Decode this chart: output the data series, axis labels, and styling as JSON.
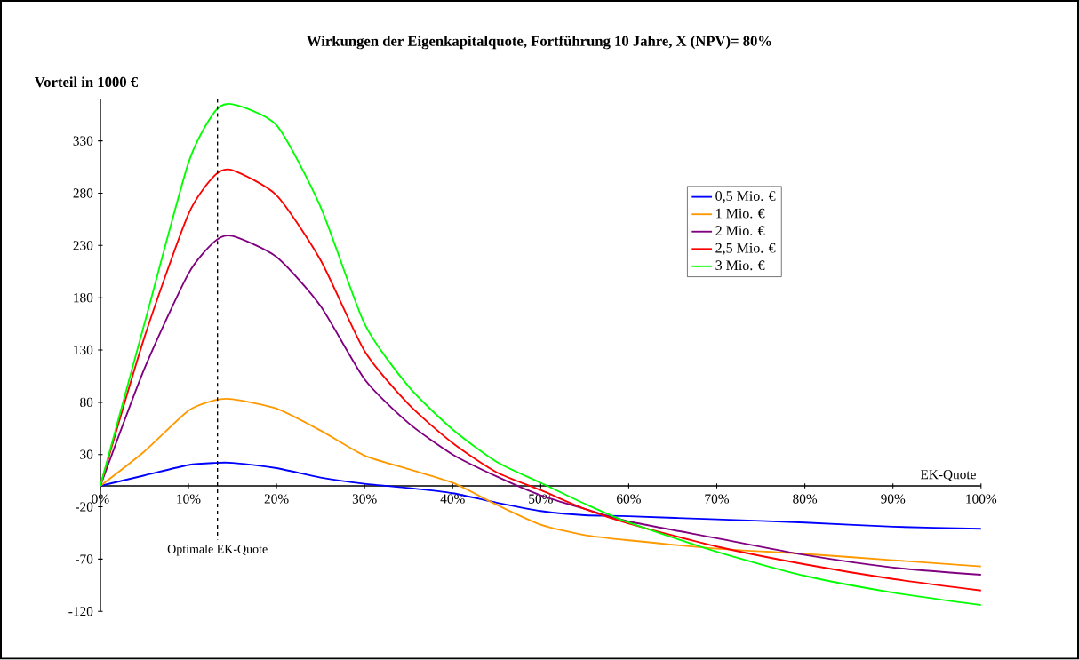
{
  "chart_data": {
    "type": "line",
    "title": "Wirkungen der Eigenkapitalquote, Fortführung 10 Jahre, X (NPV)= 80%",
    "xlabel": "EK-Quote",
    "ylabel": "Vorteil in 1000 €",
    "x": [
      0,
      5,
      10,
      13,
      15,
      20,
      25,
      30,
      35,
      40,
      45,
      50,
      55,
      60,
      70,
      80,
      90,
      100
    ],
    "series": [
      {
        "name": "0,5 Mio. €",
        "color": "#0000ff",
        "values": [
          0,
          10,
          20,
          22,
          22,
          17,
          8,
          2,
          -2,
          -7,
          -16,
          -24,
          -28,
          -29,
          -32,
          -35,
          -39,
          -41
        ]
      },
      {
        "name": "1 Mio. €",
        "color": "#ff9900",
        "values": [
          0,
          33,
          72,
          82,
          83,
          74,
          53,
          29,
          16,
          3,
          -18,
          -37,
          -47,
          -52,
          -60,
          -65,
          -71,
          -77
        ]
      },
      {
        "name": "2 Mio. €",
        "color": "#800080",
        "values": [
          0,
          112,
          203,
          234,
          239,
          219,
          172,
          102,
          60,
          30,
          9,
          -9,
          -22,
          -34,
          -50,
          -66,
          -78,
          -85
        ]
      },
      {
        "name": "2,5 Mio. €",
        "color": "#ff0000",
        "values": [
          0,
          142,
          260,
          297,
          302,
          278,
          216,
          129,
          78,
          41,
          13,
          -4,
          -22,
          -36,
          -58,
          -75,
          -89,
          -100
        ]
      },
      {
        "name": "3 Mio. €",
        "color": "#00ff00",
        "values": [
          0,
          155,
          309,
          358,
          365,
          345,
          267,
          155,
          95,
          54,
          23,
          3,
          -17,
          -35,
          -63,
          -86,
          -102,
          -114
        ]
      }
    ],
    "xlim": [
      0,
      100
    ],
    "ylim": [
      -120,
      370
    ],
    "xticks": [
      {
        "value": 0,
        "label": "0%"
      },
      {
        "value": 10,
        "label": "10%"
      },
      {
        "value": 20,
        "label": "20%"
      },
      {
        "value": 30,
        "label": "30%"
      },
      {
        "value": 40,
        "label": "40%"
      },
      {
        "value": 50,
        "label": "50%"
      },
      {
        "value": 60,
        "label": "60%"
      },
      {
        "value": 70,
        "label": "70%"
      },
      {
        "value": 80,
        "label": "80%"
      },
      {
        "value": 90,
        "label": "90%"
      },
      {
        "value": 100,
        "label": "100%"
      }
    ],
    "yticks": [
      -120,
      -70,
      -20,
      30,
      80,
      130,
      180,
      230,
      280,
      330
    ],
    "ref_lines": [
      {
        "axis": "x",
        "value": 13.3,
        "label": "Optimale EK-Quote",
        "color": "#000000",
        "line_style": "dashed"
      }
    ],
    "grid": false,
    "legend": "top right",
    "marker": "none",
    "line_style": "solid"
  }
}
